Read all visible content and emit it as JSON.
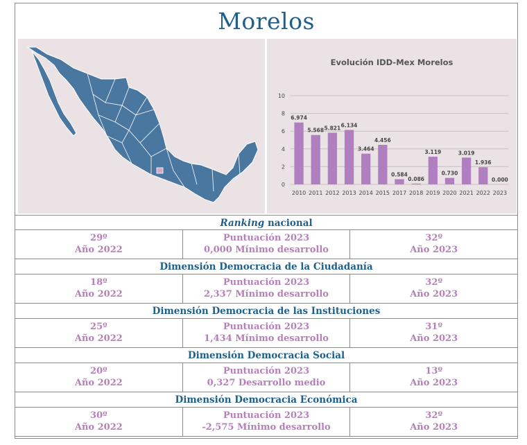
{
  "title": "Morelos",
  "colors": {
    "accent": "#1f5f8b",
    "value_text": "#b57fb8",
    "bar": "#b07fc0",
    "map_fill": "#4a77a0",
    "highlight_state": "#d6a8c8",
    "panel_bg": "#ebe2e5"
  },
  "map": {
    "icon": "mexico-map-icon"
  },
  "chart_data": {
    "type": "bar",
    "title": "Evolución IDD-Mex Morelos",
    "categories": [
      "2010",
      "2011",
      "2012",
      "2013",
      "2014",
      "2015",
      "2017",
      "2018",
      "2019",
      "2020",
      "2021",
      "2022",
      "2023"
    ],
    "values": [
      6.974,
      5.568,
      5.821,
      6.134,
      3.464,
      4.456,
      0.584,
      0.086,
      3.119,
      0.73,
      3.019,
      1.936,
      0.0
    ],
    "value_labels": [
      "6.974",
      "5.568",
      "5.821",
      "6.134",
      "3.464",
      "4.456",
      "0.584",
      "0.086",
      "3.119",
      "0.730",
      "3.019",
      "1.936",
      "0.000"
    ],
    "yticks": [
      "0",
      "2",
      "4",
      "6",
      "8",
      "10"
    ],
    "ylim": [
      0,
      10
    ],
    "grid": true
  },
  "sections": [
    {
      "header_italic": "Ranking",
      "header_rest": " nacional",
      "left_rank": "29º",
      "left_year": "Año 2022",
      "mid_label": "Puntuación 2023",
      "mid_value": "0,000 Mínimo desarrollo",
      "right_rank": "32º",
      "right_year": "Año 2023"
    },
    {
      "header_italic": "",
      "header_rest": "Dimensión Democracia de la Ciudadanía",
      "left_rank": "18º",
      "left_year": "Año 2022",
      "mid_label": "Puntuación 2023",
      "mid_value": "2,337 Mínimo desarrollo",
      "right_rank": "32º",
      "right_year": "Año 2023"
    },
    {
      "header_italic": "",
      "header_rest": "Dimensión Democracia de las Instituciones",
      "left_rank": "25º",
      "left_year": "Año 2022",
      "mid_label": "Puntuación 2023",
      "mid_value": "1,434 Mínimo desarrollo",
      "right_rank": "31º",
      "right_year": "Año 2023"
    },
    {
      "header_italic": "",
      "header_rest": "Dimensión Democracia Social",
      "left_rank": "20º",
      "left_year": "Año 2022",
      "mid_label": "Puntuación 2023",
      "mid_value": "0,327 Desarrollo medio",
      "right_rank": "13º",
      "right_year": "Año 2023"
    },
    {
      "header_italic": "",
      "header_rest": "Dimensión Democracia Económica",
      "left_rank": "30º",
      "left_year": "Año 2022",
      "mid_label": "Puntuación 2023",
      "mid_value": "-2,575 Mínimo desarrollo",
      "right_rank": "32º",
      "right_year": "Año 2023"
    }
  ]
}
